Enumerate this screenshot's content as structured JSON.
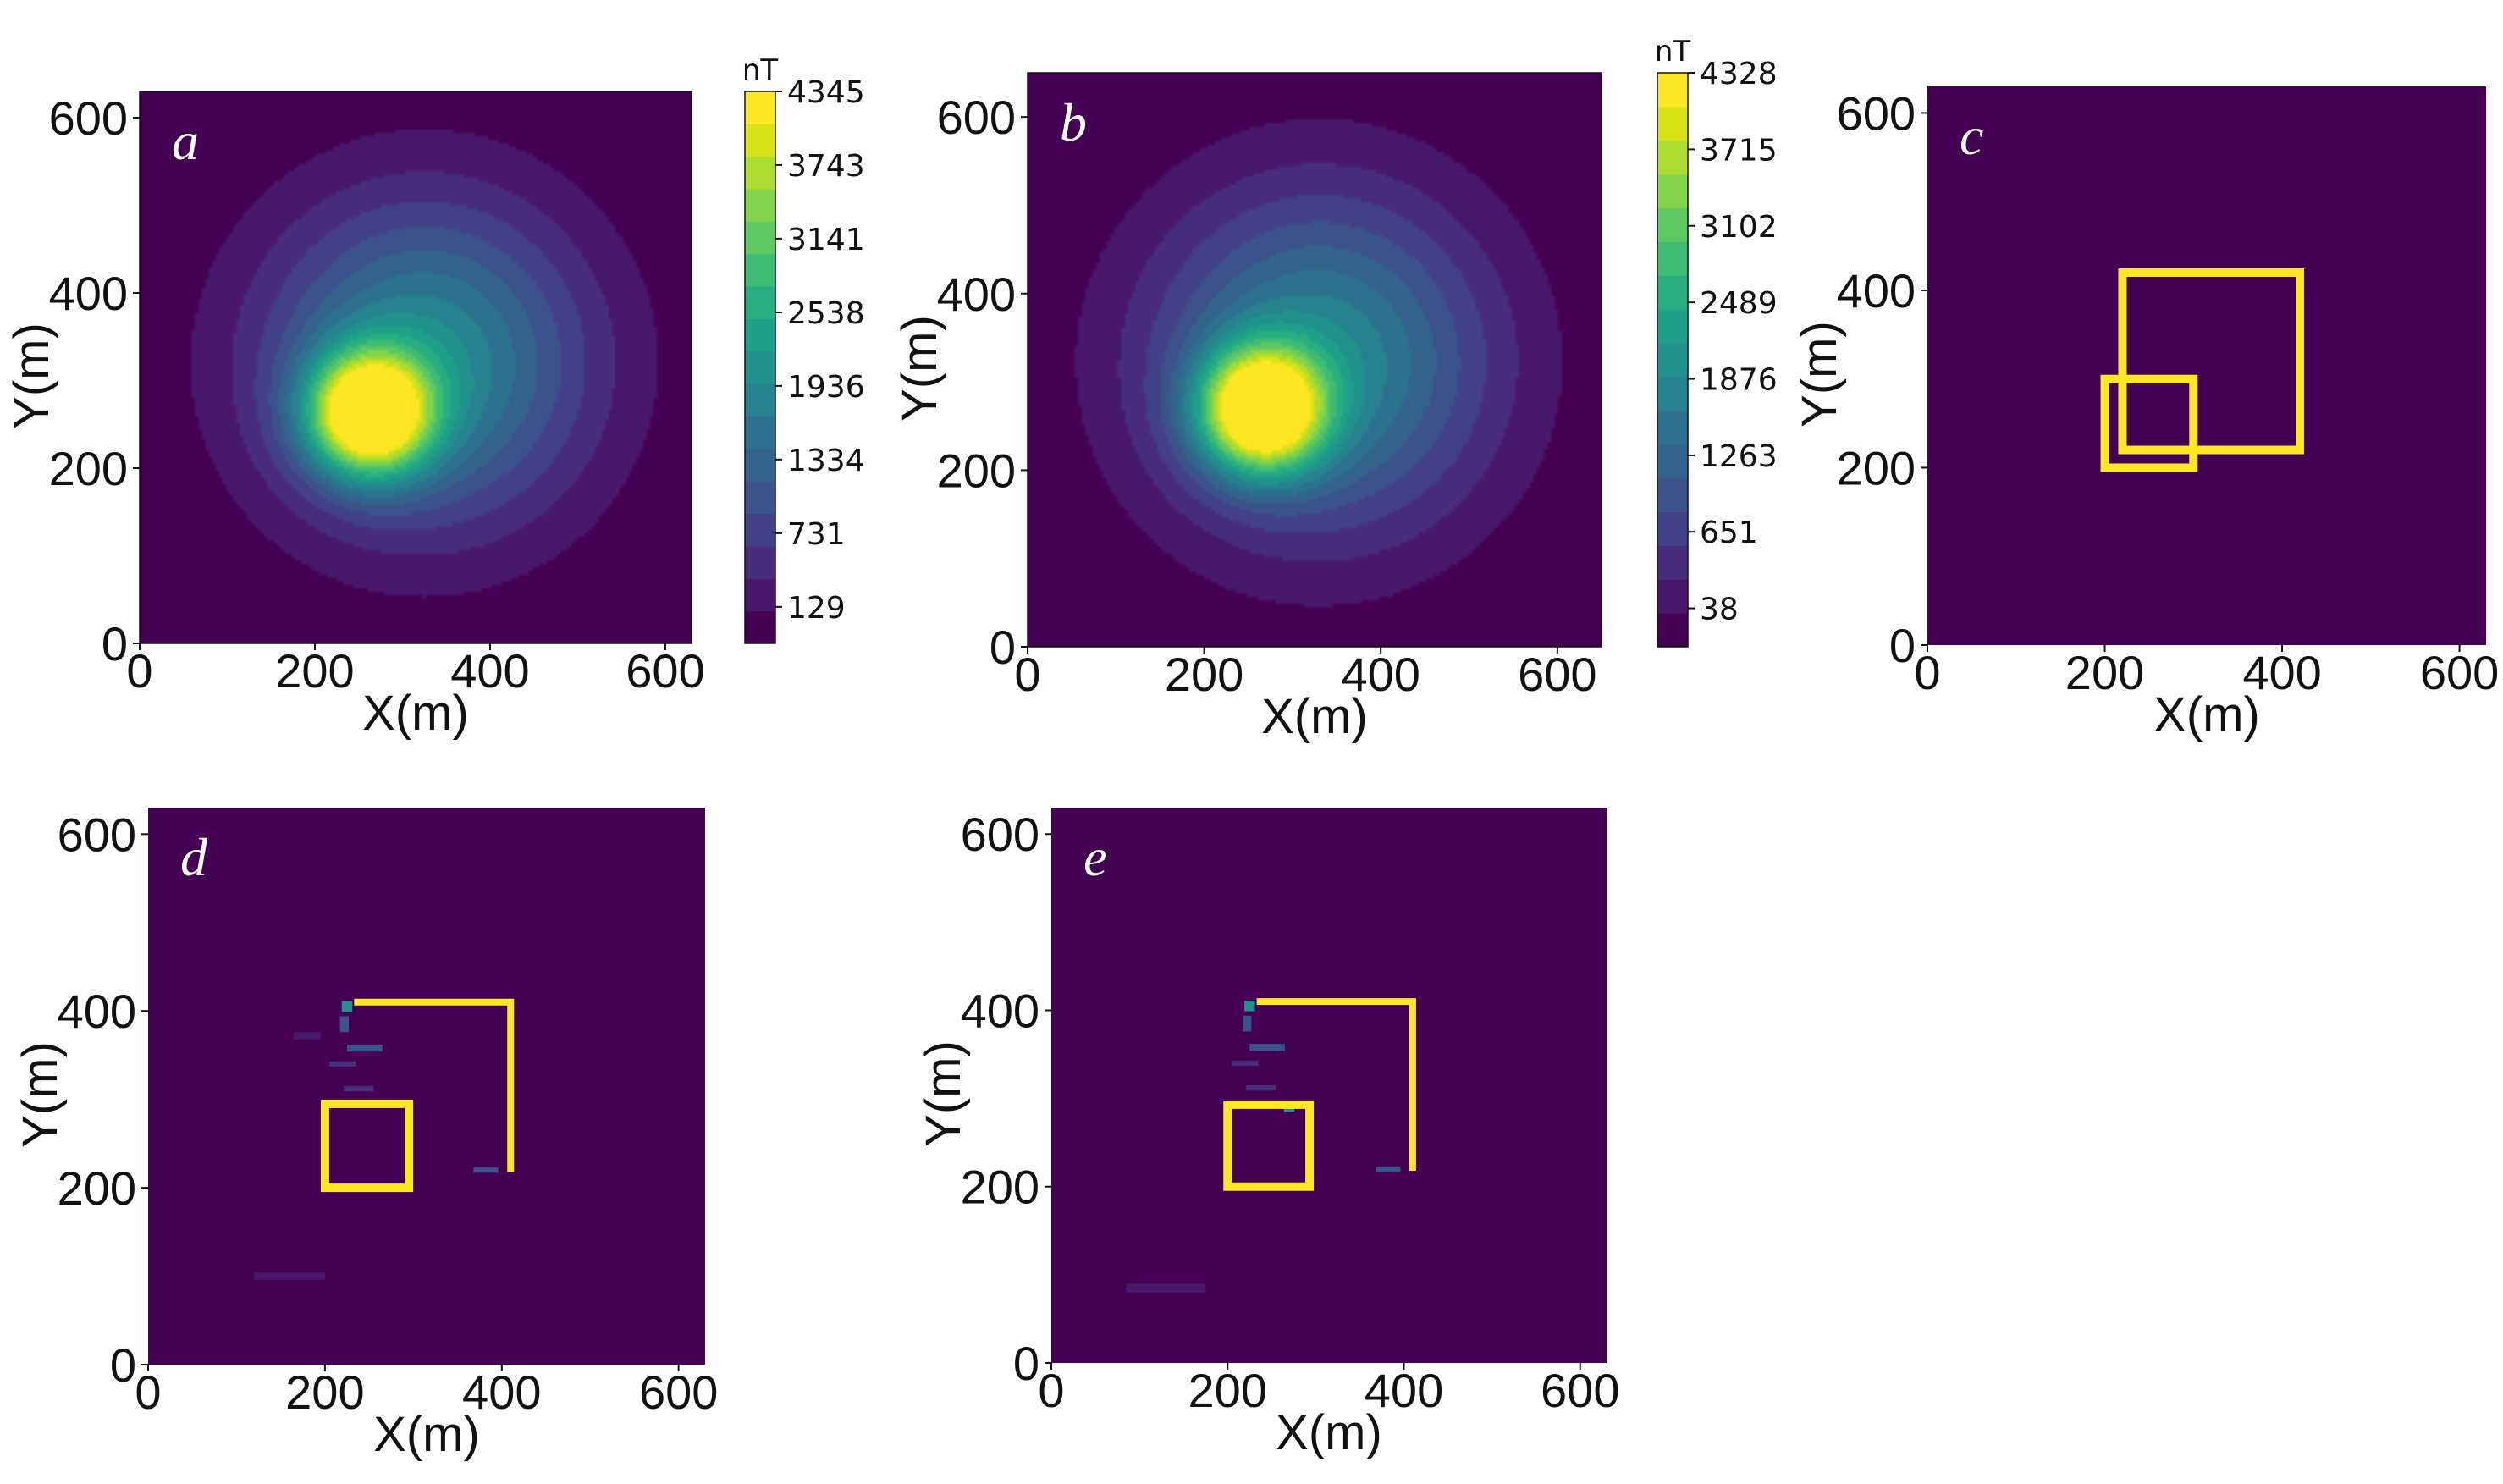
{
  "colors": {
    "background": "#440154",
    "outline": "#fde725",
    "viridis": [
      "#440154",
      "#48186a",
      "#472d7b",
      "#424086",
      "#3b528b",
      "#33638d",
      "#2c728e",
      "#26828e",
      "#21918c",
      "#1fa088",
      "#28ae80",
      "#3fbc73",
      "#5ec962",
      "#84d44b",
      "#addc30",
      "#d8e219",
      "#fde725"
    ]
  },
  "chart_data": [
    {
      "id": "a",
      "panel_label": "a",
      "type": "heatmap",
      "subtype": "filled-contour",
      "xlabel": "X(m)",
      "ylabel": "Y(m)",
      "xlim": [
        0,
        630
      ],
      "ylim": [
        0,
        630
      ],
      "xticks": [
        0,
        200,
        400,
        600
      ],
      "yticks": [
        0,
        200,
        400,
        600
      ],
      "colorbar": {
        "unit": "nT",
        "ticks": [
          129,
          731,
          1334,
          1936,
          2538,
          3141,
          3743,
          4345
        ],
        "min": -170,
        "max": 4345
      },
      "sources": [
        {
          "x": 262,
          "y": 262,
          "peak": 4345,
          "spread": 48
        },
        {
          "x": 325,
          "y": 320,
          "peak": 2100,
          "spread": 130
        }
      ]
    },
    {
      "id": "b",
      "panel_label": "b",
      "type": "heatmap",
      "subtype": "filled-contour",
      "xlabel": "X(m)",
      "ylabel": "Y(m)",
      "xlim": [
        0,
        650
      ],
      "ylim": [
        0,
        650
      ],
      "xticks": [
        0,
        200,
        400,
        600
      ],
      "yticks": [
        0,
        200,
        400,
        600
      ],
      "colorbar": {
        "unit": "nT",
        "ticks": [
          38,
          651,
          1263,
          1876,
          2489,
          3102,
          3715,
          4328
        ],
        "min": -270,
        "max": 4328
      },
      "sources": [
        {
          "x": 265,
          "y": 268,
          "peak": 4328,
          "spread": 48
        },
        {
          "x": 330,
          "y": 322,
          "peak": 2050,
          "spread": 135
        }
      ]
    },
    {
      "id": "c",
      "panel_label": "c",
      "type": "heatmap",
      "subtype": "model",
      "xlabel": "X(m)",
      "ylabel": "Y(m)",
      "xlim": [
        0,
        630
      ],
      "ylim": [
        0,
        630
      ],
      "xticks": [
        0,
        200,
        400,
        600
      ],
      "yticks": [
        0,
        200,
        400,
        600
      ],
      "rectangles": [
        {
          "x0": 200,
          "x1": 300,
          "y0": 200,
          "y1": 300
        },
        {
          "x0": 220,
          "x1": 420,
          "y0": 220,
          "y1": 420
        }
      ]
    },
    {
      "id": "d",
      "panel_label": "d",
      "type": "heatmap",
      "subtype": "inversion",
      "xlabel": "X(m)",
      "ylabel": "Y(m)",
      "xlim": [
        0,
        630
      ],
      "ylim": [
        0,
        630
      ],
      "xticks": [
        0,
        200,
        400,
        600
      ],
      "yticks": [
        0,
        200,
        400,
        600
      ],
      "rectangles": [
        {
          "x0": 200,
          "x1": 295,
          "y0": 200,
          "y1": 295
        }
      ],
      "paths": [
        [
          [
            233,
            410
          ],
          [
            410,
            410
          ],
          [
            410,
            218
          ]
        ]
      ],
      "blobs": [
        {
          "x": 225,
          "y": 405,
          "w": 12,
          "h": 12,
          "c": "#21918c"
        },
        {
          "x": 222,
          "y": 385,
          "w": 10,
          "h": 18,
          "c": "#3b528b"
        },
        {
          "x": 245,
          "y": 358,
          "w": 40,
          "h": 8,
          "c": "#3b528b"
        },
        {
          "x": 220,
          "y": 340,
          "w": 30,
          "h": 6,
          "c": "#472d7b"
        },
        {
          "x": 238,
          "y": 312,
          "w": 34,
          "h": 6,
          "c": "#472d7b"
        },
        {
          "x": 382,
          "y": 220,
          "w": 28,
          "h": 6,
          "c": "#3b528b"
        },
        {
          "x": 180,
          "y": 372,
          "w": 30,
          "h": 8,
          "c": "#48186a"
        },
        {
          "x": 160,
          "y": 100,
          "w": 80,
          "h": 8,
          "c": "#48186a"
        }
      ]
    },
    {
      "id": "e",
      "panel_label": "e",
      "type": "heatmap",
      "subtype": "inversion",
      "xlabel": "X(m)",
      "ylabel": "Y(m)",
      "xlim": [
        0,
        630
      ],
      "ylim": [
        0,
        630
      ],
      "xticks": [
        0,
        200,
        400,
        600
      ],
      "yticks": [
        0,
        200,
        400,
        600
      ],
      "rectangles": [
        {
          "x0": 200,
          "x1": 293,
          "y0": 200,
          "y1": 293
        }
      ],
      "paths": [
        [
          [
            233,
            410
          ],
          [
            410,
            410
          ],
          [
            410,
            218
          ]
        ]
      ],
      "blobs": [
        {
          "x": 225,
          "y": 405,
          "w": 12,
          "h": 12,
          "c": "#21918c"
        },
        {
          "x": 222,
          "y": 385,
          "w": 10,
          "h": 18,
          "c": "#3b528b"
        },
        {
          "x": 245,
          "y": 358,
          "w": 40,
          "h": 8,
          "c": "#3b528b"
        },
        {
          "x": 220,
          "y": 340,
          "w": 30,
          "h": 6,
          "c": "#472d7b"
        },
        {
          "x": 238,
          "y": 312,
          "w": 34,
          "h": 6,
          "c": "#472d7b"
        },
        {
          "x": 270,
          "y": 290,
          "w": 12,
          "h": 10,
          "c": "#21918c"
        },
        {
          "x": 382,
          "y": 220,
          "w": 28,
          "h": 6,
          "c": "#3b528b"
        },
        {
          "x": 130,
          "y": 85,
          "w": 90,
          "h": 10,
          "c": "#48186a"
        }
      ]
    }
  ]
}
